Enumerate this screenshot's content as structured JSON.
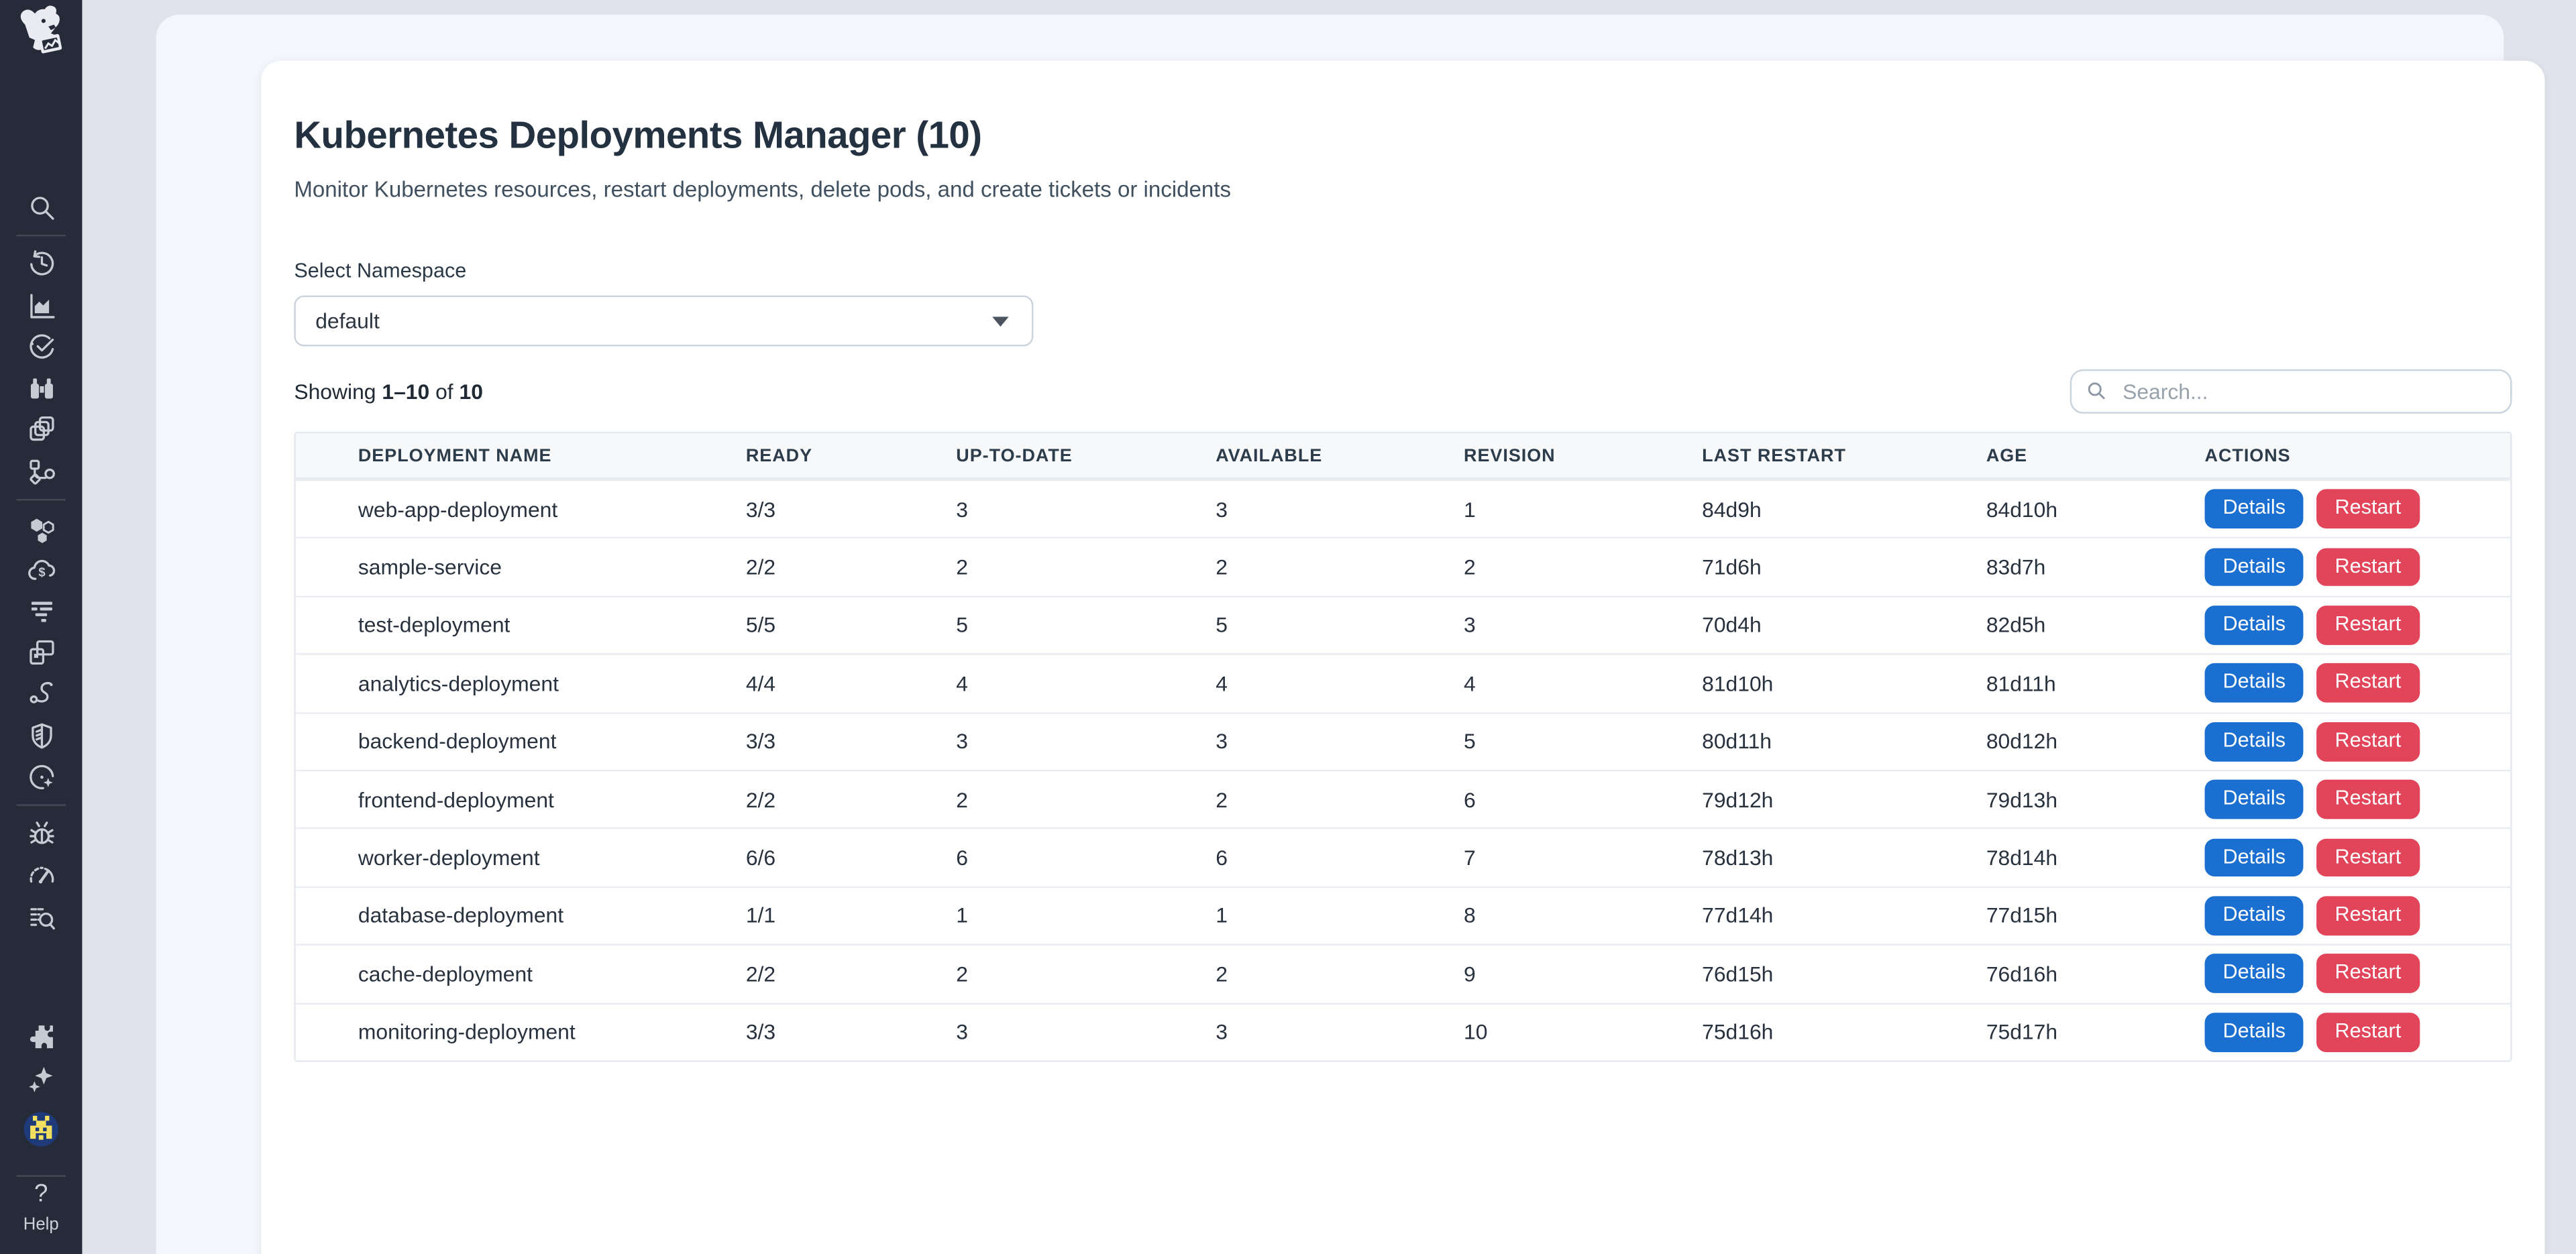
{
  "sidebar": {
    "logo": "datadog-logo",
    "items": [
      {
        "icon": "search-icon"
      },
      {
        "icon": "history-icon"
      },
      {
        "icon": "metrics-chart-icon"
      },
      {
        "icon": "watchdog-check-icon"
      },
      {
        "icon": "apm-binoculars-icon"
      },
      {
        "icon": "catalog-layers-icon"
      },
      {
        "icon": "service-map-icon"
      },
      {
        "icon": "infrastructure-hexagons-icon"
      },
      {
        "icon": "cloud-cost-icon"
      },
      {
        "icon": "logs-icon"
      },
      {
        "icon": "rum-windows-icon"
      },
      {
        "icon": "synthetics-icon"
      },
      {
        "icon": "security-shield-icon"
      },
      {
        "icon": "slo-clock-icon"
      },
      {
        "icon": "error-tracking-bug-icon"
      },
      {
        "icon": "gauge-icon"
      },
      {
        "icon": "audit-search-icon"
      },
      {
        "icon": "integrations-puzzle-icon"
      },
      {
        "icon": "ai-sparkles-icon"
      },
      {
        "icon": "bits-ai-icon"
      }
    ],
    "help": {
      "glyph": "?",
      "label": "Help"
    }
  },
  "header": {
    "title": "Kubernetes Deployments Manager (10)",
    "subtitle": "Monitor Kubernetes resources, restart deployments, delete pods, and create tickets or incidents"
  },
  "namespace": {
    "label": "Select Namespace",
    "selected": "default"
  },
  "summary": {
    "showing": "Showing",
    "range": "1–10",
    "of": "of",
    "total": "10"
  },
  "search": {
    "placeholder": "Search..."
  },
  "table": {
    "columns": [
      {
        "key": "name",
        "label": "DEPLOYMENT NAME"
      },
      {
        "key": "ready",
        "label": "READY"
      },
      {
        "key": "up_to_date",
        "label": "UP-TO-DATE"
      },
      {
        "key": "available",
        "label": "AVAILABLE"
      },
      {
        "key": "revision",
        "label": "REVISION"
      },
      {
        "key": "last_restart",
        "label": "LAST RESTART"
      },
      {
        "key": "age",
        "label": "AGE"
      },
      {
        "key": "actions",
        "label": "ACTIONS"
      }
    ],
    "rows": [
      {
        "name": "web-app-deployment",
        "ready": "3/3",
        "up_to_date": "3",
        "available": "3",
        "revision": "1",
        "last_restart": "84d9h",
        "age": "84d10h"
      },
      {
        "name": "sample-service",
        "ready": "2/2",
        "up_to_date": "2",
        "available": "2",
        "revision": "2",
        "last_restart": "71d6h",
        "age": "83d7h"
      },
      {
        "name": "test-deployment",
        "ready": "5/5",
        "up_to_date": "5",
        "available": "5",
        "revision": "3",
        "last_restart": "70d4h",
        "age": "82d5h"
      },
      {
        "name": "analytics-deployment",
        "ready": "4/4",
        "up_to_date": "4",
        "available": "4",
        "revision": "4",
        "last_restart": "81d10h",
        "age": "81d11h"
      },
      {
        "name": "backend-deployment",
        "ready": "3/3",
        "up_to_date": "3",
        "available": "3",
        "revision": "5",
        "last_restart": "80d11h",
        "age": "80d12h"
      },
      {
        "name": "frontend-deployment",
        "ready": "2/2",
        "up_to_date": "2",
        "available": "2",
        "revision": "6",
        "last_restart": "79d12h",
        "age": "79d13h"
      },
      {
        "name": "worker-deployment",
        "ready": "6/6",
        "up_to_date": "6",
        "available": "6",
        "revision": "7",
        "last_restart": "78d13h",
        "age": "78d14h"
      },
      {
        "name": "database-deployment",
        "ready": "1/1",
        "up_to_date": "1",
        "available": "1",
        "revision": "8",
        "last_restart": "77d14h",
        "age": "77d15h"
      },
      {
        "name": "cache-deployment",
        "ready": "2/2",
        "up_to_date": "2",
        "available": "2",
        "revision": "9",
        "last_restart": "76d15h",
        "age": "76d16h"
      },
      {
        "name": "monitoring-deployment",
        "ready": "3/3",
        "up_to_date": "3",
        "available": "3",
        "revision": "10",
        "last_restart": "75d16h",
        "age": "75d17h"
      }
    ],
    "row_actions": [
      {
        "label": "Details",
        "style": "primary",
        "name": "details-button"
      },
      {
        "label": "Restart",
        "style": "danger",
        "name": "restart-button"
      }
    ]
  },
  "colors": {
    "sidebar_bg": "#262b39",
    "icon": "#c6cad3",
    "page_bg": "#e0e3eb",
    "panel_bg": "#f3f6fb",
    "primary_blue": "#1b6fd0",
    "danger_red": "#e24459",
    "bits_yellow": "#f3e05f",
    "bits_navy": "#1e3a78"
  }
}
